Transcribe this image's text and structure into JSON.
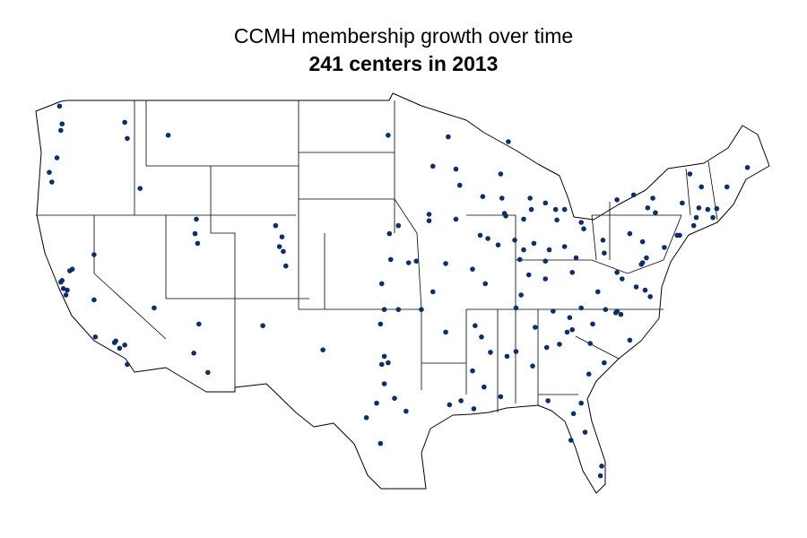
{
  "title": "CCMH membership growth over time",
  "subtitle": "241 centers in 2013",
  "centers": [
    [
      -122.3,
      47.6
    ],
    [
      -122.4,
      47.2
    ],
    [
      -122.5,
      48.7
    ],
    [
      -117.2,
      46.7
    ],
    [
      -117.4,
      47.7
    ],
    [
      -123.1,
      44.0
    ],
    [
      -123.3,
      44.6
    ],
    [
      -122.7,
      45.5
    ],
    [
      -114.0,
      46.9
    ],
    [
      -116.2,
      43.6
    ],
    [
      -111.8,
      41.7
    ],
    [
      -111.9,
      40.8
    ],
    [
      -111.7,
      40.2
    ],
    [
      -119.8,
      39.5
    ],
    [
      -121.7,
      38.5
    ],
    [
      -121.5,
      38.6
    ],
    [
      -122.4,
      37.8
    ],
    [
      -122.3,
      37.9
    ],
    [
      -122.2,
      37.4
    ],
    [
      -121.9,
      37.3
    ],
    [
      -122.0,
      37.0
    ],
    [
      -119.8,
      36.7
    ],
    [
      -118.2,
      34.05
    ],
    [
      -118.1,
      34.15
    ],
    [
      -117.8,
      33.7
    ],
    [
      -117.4,
      33.9
    ],
    [
      -117.2,
      32.7
    ],
    [
      -119.7,
      34.4
    ],
    [
      -115.1,
      36.2
    ],
    [
      -111.6,
      35.2
    ],
    [
      -112.0,
      33.4
    ],
    [
      -110.9,
      32.2
    ],
    [
      -106.6,
      35.1
    ],
    [
      -105.0,
      39.7
    ],
    [
      -105.3,
      40.0
    ],
    [
      -105.1,
      40.6
    ],
    [
      -104.8,
      38.8
    ],
    [
      -105.6,
      41.3
    ],
    [
      -101.9,
      33.6
    ],
    [
      -96.8,
      32.8
    ],
    [
      -97.3,
      32.7
    ],
    [
      -97.1,
      33.2
    ],
    [
      -97.7,
      30.3
    ],
    [
      -98.5,
      29.4
    ],
    [
      -95.4,
      29.8
    ],
    [
      -96.3,
      30.6
    ],
    [
      -97.1,
      31.5
    ],
    [
      -97.4,
      35.2
    ],
    [
      -97.1,
      36.1
    ],
    [
      -96.0,
      36.1
    ],
    [
      -95.2,
      39.0
    ],
    [
      -96.6,
      39.2
    ],
    [
      -96.0,
      41.3
    ],
    [
      -96.7,
      40.8
    ],
    [
      -93.3,
      44.98
    ],
    [
      -92.1,
      46.8
    ],
    [
      -96.8,
      46.9
    ],
    [
      -93.6,
      41.6
    ],
    [
      -91.5,
      41.7
    ],
    [
      -93.6,
      42.0
    ],
    [
      -92.3,
      38.95
    ],
    [
      -90.2,
      38.6
    ],
    [
      -94.6,
      39.1
    ],
    [
      -93.3,
      37.2
    ],
    [
      -94.2,
      36.1
    ],
    [
      -92.3,
      34.7
    ],
    [
      -90.0,
      35.1
    ],
    [
      -86.8,
      36.2
    ],
    [
      -83.9,
      36.0
    ],
    [
      -85.3,
      35.0
    ],
    [
      -84.4,
      33.75
    ],
    [
      -83.4,
      33.95
    ],
    [
      -86.8,
      33.5
    ],
    [
      -87.5,
      33.2
    ],
    [
      -85.5,
      32.6
    ],
    [
      -90.2,
      32.3
    ],
    [
      -89.5,
      34.4
    ],
    [
      -88.8,
      33.45
    ],
    [
      -89.3,
      31.3
    ],
    [
      -90.1,
      29.95
    ],
    [
      -91.1,
      30.45
    ],
    [
      -84.3,
      30.45
    ],
    [
      -82.3,
      29.65
    ],
    [
      -81.7,
      30.3
    ],
    [
      -81.4,
      28.5
    ],
    [
      -82.5,
      28.0
    ],
    [
      -80.2,
      25.8
    ],
    [
      -80.1,
      26.4
    ],
    [
      -81.1,
      32.1
    ],
    [
      -79.9,
      32.8
    ],
    [
      -81.0,
      34.0
    ],
    [
      -82.8,
      34.7
    ],
    [
      -82.4,
      34.85
    ],
    [
      -80.8,
      35.2
    ],
    [
      -78.6,
      35.8
    ],
    [
      -78.9,
      36.0
    ],
    [
      -79.0,
      35.9
    ],
    [
      -79.8,
      36.1
    ],
    [
      -77.9,
      34.2
    ],
    [
      -82.6,
      35.6
    ],
    [
      -81.7,
      36.2
    ],
    [
      -77.4,
      37.5
    ],
    [
      -78.5,
      38.0
    ],
    [
      -80.4,
      37.2
    ],
    [
      -76.3,
      36.9
    ],
    [
      -76.7,
      37.3
    ],
    [
      -78.9,
      38.4
    ],
    [
      -77.0,
      38.9
    ],
    [
      -76.6,
      39.3
    ],
    [
      -76.9,
      39.0
    ],
    [
      -75.2,
      39.95
    ],
    [
      -80.0,
      40.4
    ],
    [
      -77.9,
      40.8
    ],
    [
      -76.9,
      40.3
    ],
    [
      -74.2,
      40.7
    ],
    [
      -74.0,
      40.7
    ],
    [
      -72.9,
      41.3
    ],
    [
      -72.7,
      41.8
    ],
    [
      -71.4,
      41.8
    ],
    [
      -71.1,
      42.35
    ],
    [
      -71.8,
      42.3
    ],
    [
      -72.5,
      42.4
    ],
    [
      -73.2,
      44.5
    ],
    [
      -72.3,
      43.7
    ],
    [
      -70.3,
      43.7
    ],
    [
      -68.7,
      44.9
    ],
    [
      -73.8,
      42.7
    ],
    [
      -76.1,
      43.0
    ],
    [
      -77.6,
      43.2
    ],
    [
      -78.9,
      42.9
    ],
    [
      -76.5,
      42.4
    ],
    [
      -75.9,
      42.1
    ],
    [
      -81.7,
      41.5
    ],
    [
      -83.0,
      40.0
    ],
    [
      -84.5,
      39.1
    ],
    [
      -84.2,
      39.8
    ],
    [
      -82.1,
      39.3
    ],
    [
      -83.6,
      41.65
    ],
    [
      -81.5,
      41.1
    ],
    [
      -83.0,
      42.3
    ],
    [
      -83.7,
      42.3
    ],
    [
      -84.5,
      42.7
    ],
    [
      -85.7,
      43.0
    ],
    [
      -85.6,
      42.3
    ],
    [
      -87.4,
      46.5
    ],
    [
      -87.6,
      41.9
    ],
    [
      -87.7,
      42.05
    ],
    [
      -88.2,
      40.1
    ],
    [
      -89.0,
      40.5
    ],
    [
      -89.6,
      40.7
    ],
    [
      -89.2,
      37.7
    ],
    [
      -86.5,
      39.2
    ],
    [
      -86.2,
      39.8
    ],
    [
      -86.9,
      40.4
    ],
    [
      -86.2,
      41.7
    ],
    [
      -85.4,
      40.2
    ],
    [
      -85.8,
      38.25
    ],
    [
      -84.5,
      38.0
    ],
    [
      -86.4,
      37.0
    ],
    [
      -89.4,
      43.1
    ],
    [
      -87.9,
      43.0
    ],
    [
      -88.0,
      44.5
    ],
    [
      -91.5,
      44.8
    ],
    [
      -91.2,
      43.8
    ],
    [
      -79.9,
      39.6
    ],
    [
      -82.4,
      38.4
    ],
    [
      -97.3,
      37.7
    ],
    [
      -92.0,
      30.2
    ],
    [
      -88.0,
      30.7
    ],
    [
      -97.4,
      27.8
    ]
  ]
}
